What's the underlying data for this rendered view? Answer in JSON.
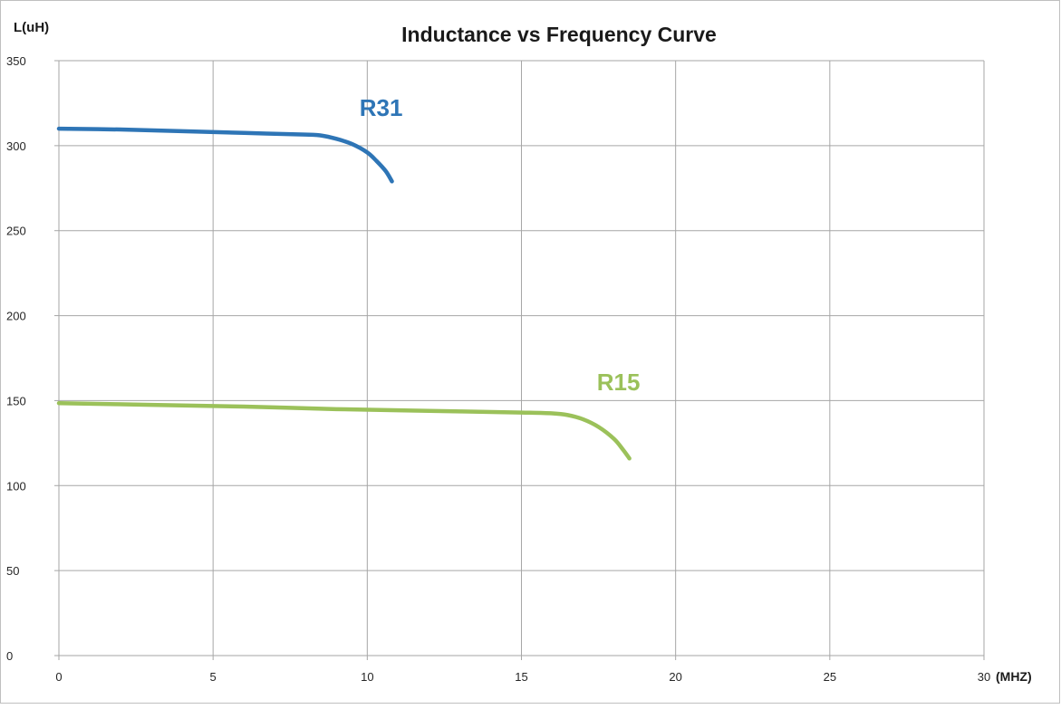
{
  "chart_data": {
    "type": "line",
    "title": "Inductance vs Frequency Curve",
    "ylabel": "L(uH)",
    "xlabel": "30 (MHZ)",
    "xlim": [
      0,
      30
    ],
    "ylim": [
      0,
      350
    ],
    "x_ticks": [
      "0",
      "5",
      "10",
      "15",
      "20",
      "25",
      "30"
    ],
    "y_ticks": [
      "0",
      "50",
      "100",
      "150",
      "200",
      "250",
      "300",
      "350"
    ],
    "grid": true,
    "series": [
      {
        "name": "R31",
        "color": "#2e75b6",
        "x": [
          0,
          2,
          4,
          6,
          8,
          8.5,
          9.0,
          9.5,
          10.0,
          10.3,
          10.6,
          10.8
        ],
        "y": [
          310,
          309.5,
          308.5,
          307.5,
          306.5,
          306,
          304,
          301,
          296,
          291,
          285,
          279
        ]
      },
      {
        "name": "R15",
        "color": "#9bc15a",
        "x": [
          0,
          3,
          6,
          9,
          12,
          15,
          16,
          16.5,
          17.0,
          17.5,
          18.0,
          18.3,
          18.5
        ],
        "y": [
          148.5,
          147.5,
          146.5,
          145,
          144,
          143,
          142.5,
          141.5,
          139,
          134.5,
          127.5,
          121,
          116
        ]
      }
    ]
  }
}
